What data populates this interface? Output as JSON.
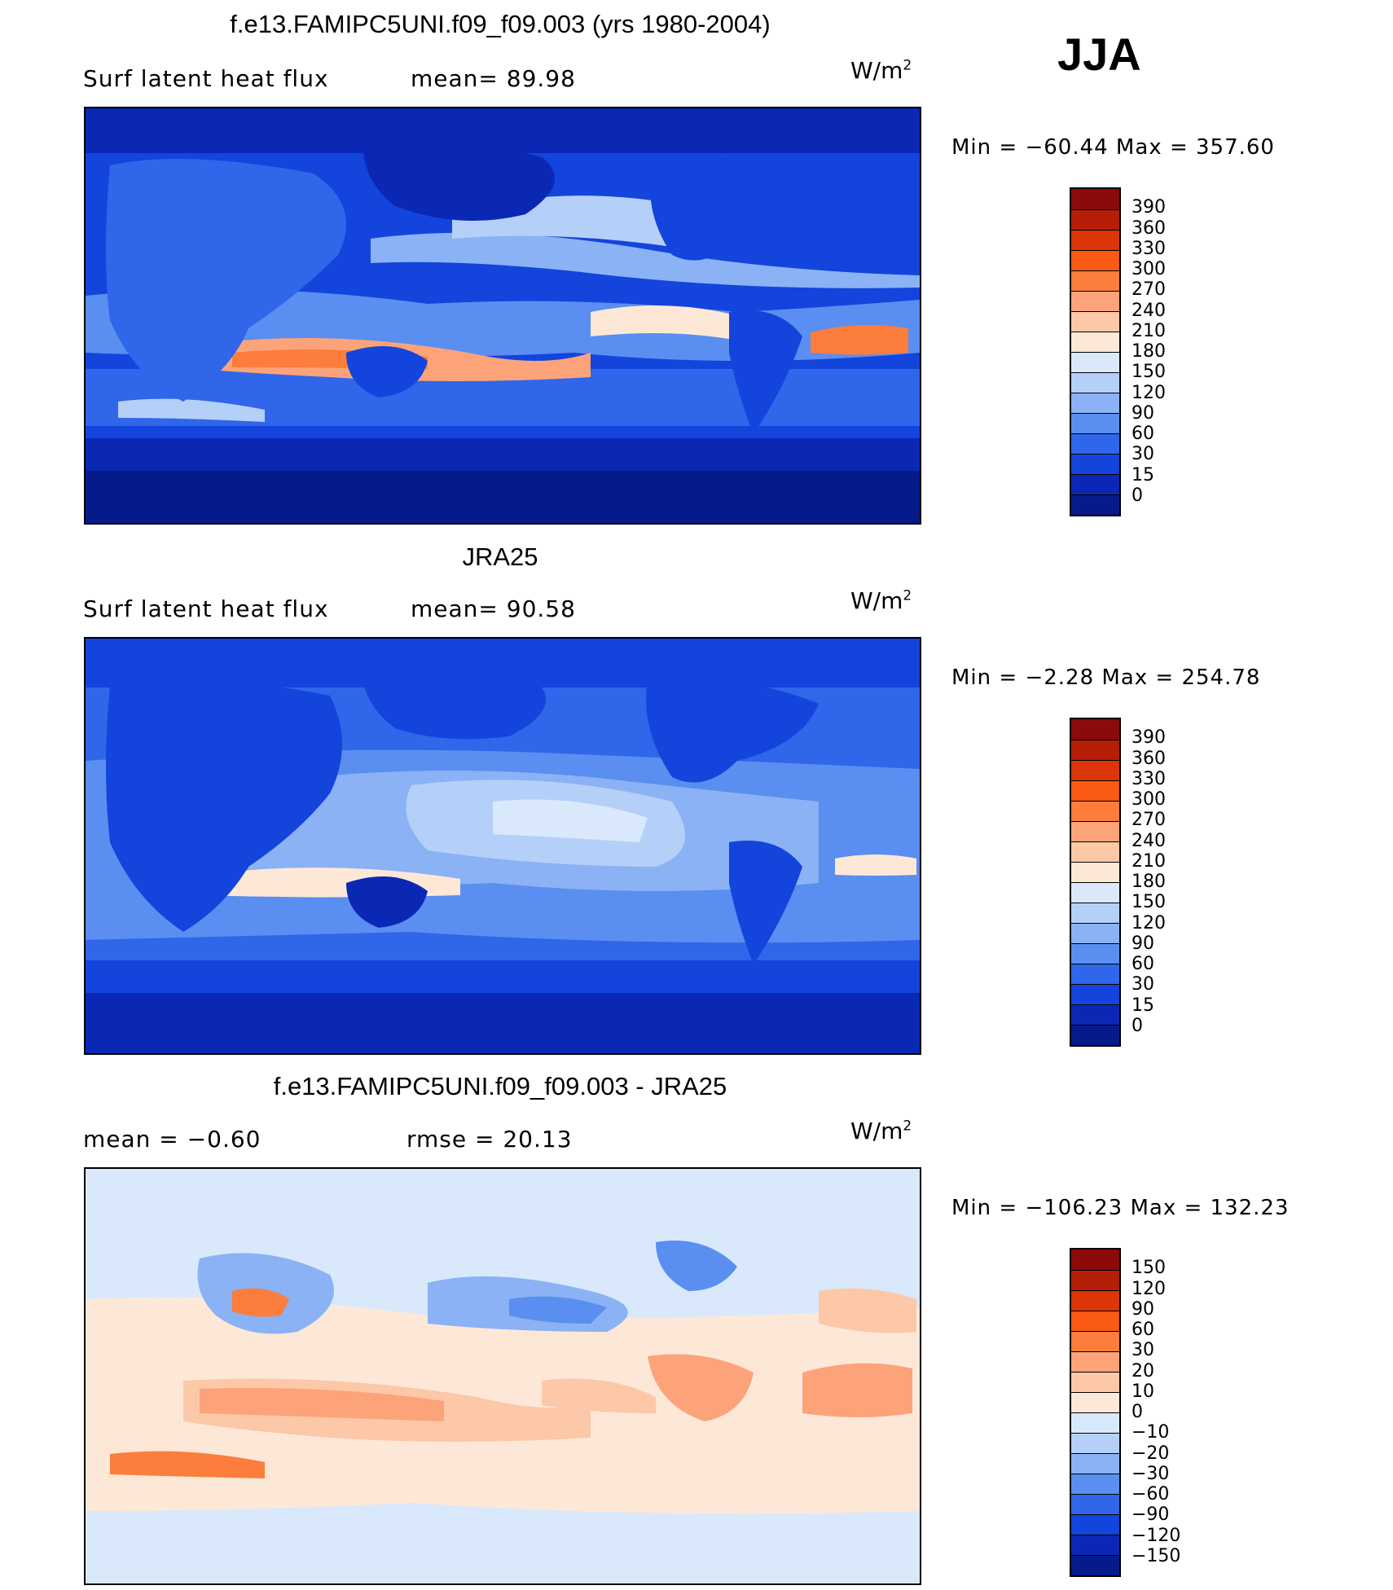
{
  "season": "JJA",
  "panels": [
    {
      "title": "f.e13.FAMIPC5UNI.f09_f09.003 (yrs 1980-2004)",
      "left_text": "Surf  latent  heat  flux",
      "right_text": "mean=   89.98",
      "units": "W/m",
      "units_sup": "2",
      "minmax": "Min  =  −60.44  Max  =  357.60",
      "colorbar": {
        "labels": [
          "390",
          "360",
          "330",
          "300",
          "270",
          "240",
          "210",
          "180",
          "150",
          "120",
          "90",
          "60",
          "30",
          "15",
          "0"
        ],
        "colors": [
          "#8b0a0a",
          "#b51e06",
          "#dc3508",
          "#fa5a14",
          "#fc7d3c",
          "#fca37a",
          "#fcc8a8",
          "#fde8d8",
          "#d9e9fb",
          "#b5d0f8",
          "#8ab2f4",
          "#5a8ef0",
          "#2f66ea",
          "#1344dc",
          "#0a28b4",
          "#061a8a"
        ]
      },
      "chart_data": {
        "type": "heatmap",
        "title": "f.e13.FAMIPC5UNI.f09_f09.003 (yrs 1980-2004)",
        "variable": "Surf  latent  heat  flux",
        "units": "W/m2",
        "mean": 89.98,
        "min": -60.44,
        "max": 357.6,
        "contour_levels": [
          0,
          15,
          30,
          60,
          90,
          120,
          150,
          180,
          210,
          240,
          270,
          300,
          330,
          360,
          390
        ]
      }
    },
    {
      "title": "JRA25",
      "left_text": "Surf  latent  heat  flux",
      "right_text": "mean=   90.58",
      "units": "W/m",
      "units_sup": "2",
      "minmax": "Min  =    −2.28  Max  =  254.78",
      "colorbar": {
        "labels": [
          "390",
          "360",
          "330",
          "300",
          "270",
          "240",
          "210",
          "180",
          "150",
          "120",
          "90",
          "60",
          "30",
          "15",
          "0"
        ],
        "colors": [
          "#8b0a0a",
          "#b51e06",
          "#dc3508",
          "#fa5a14",
          "#fc7d3c",
          "#fca37a",
          "#fcc8a8",
          "#fde8d8",
          "#d9e9fb",
          "#b5d0f8",
          "#8ab2f4",
          "#5a8ef0",
          "#2f66ea",
          "#1344dc",
          "#0a28b4",
          "#061a8a"
        ]
      },
      "chart_data": {
        "type": "heatmap",
        "title": "JRA25",
        "variable": "Surf  latent  heat  flux",
        "units": "W/m2",
        "mean": 90.58,
        "min": -2.28,
        "max": 254.78,
        "contour_levels": [
          0,
          15,
          30,
          60,
          90,
          120,
          150,
          180,
          210,
          240,
          270,
          300,
          330,
          360,
          390
        ]
      }
    },
    {
      "title": "f.e13.FAMIPC5UNI.f09_f09.003 - JRA25",
      "left_text": "mean  =    −0.60",
      "right_text": "rmse  =    20.13",
      "units": "W/m",
      "units_sup": "2",
      "minmax": "Min  =  −106.23  Max  =  132.23",
      "colorbar": {
        "labels": [
          "150",
          "120",
          "90",
          "60",
          "30",
          "20",
          "10",
          "0",
          "−10",
          "−20",
          "−30",
          "−60",
          "−90",
          "−120",
          "−150"
        ],
        "colors": [
          "#8b0a0a",
          "#b51e06",
          "#dc3508",
          "#fa5a14",
          "#fc7d3c",
          "#fca37a",
          "#fcc8a8",
          "#fde8d8",
          "#d9e9fb",
          "#b5d0f8",
          "#8ab2f4",
          "#5a8ef0",
          "#2f66ea",
          "#1344dc",
          "#0a28b4",
          "#061a8a"
        ]
      },
      "chart_data": {
        "type": "heatmap",
        "title": "f.e13.FAMIPC5UNI.f09_f09.003 - JRA25",
        "mean": -0.6,
        "rmse": 20.13,
        "units": "W/m2",
        "min": -106.23,
        "max": 132.23,
        "contour_levels": [
          -150,
          -120,
          -90,
          -60,
          -30,
          -20,
          -10,
          0,
          10,
          20,
          30,
          60,
          90,
          120,
          150
        ]
      }
    }
  ]
}
